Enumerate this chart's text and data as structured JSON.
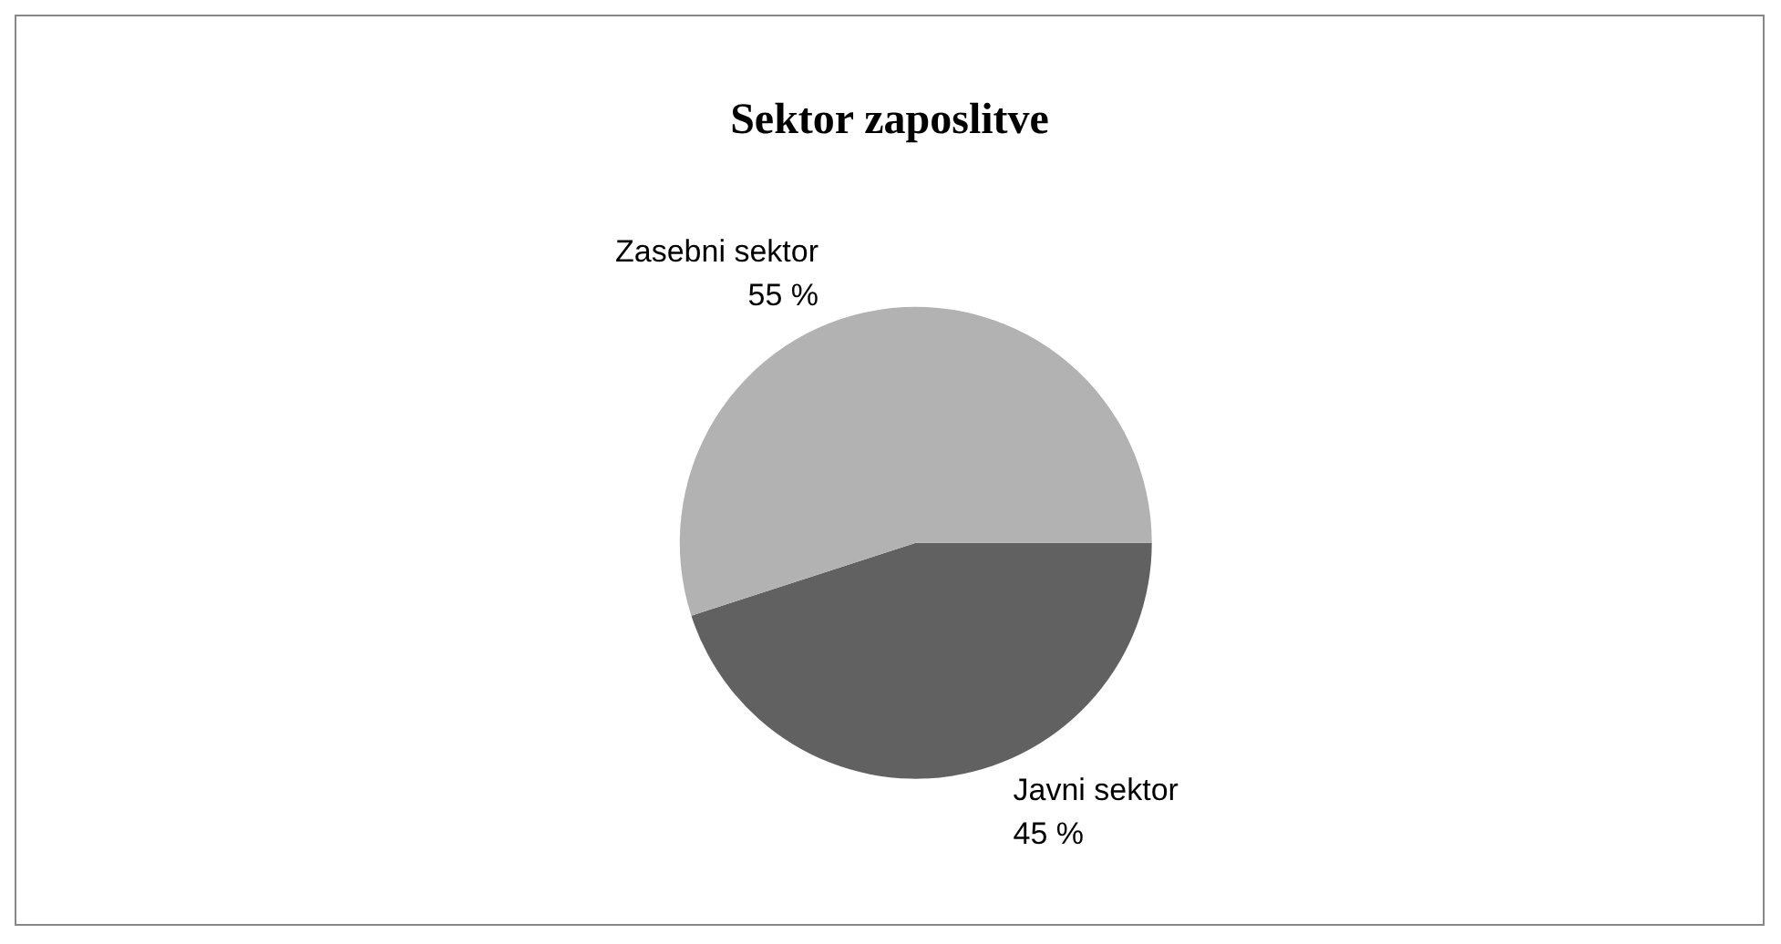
{
  "chart_data": {
    "type": "pie",
    "title": "Sektor zaposlitve",
    "categories": [
      "Javni sektor",
      "Zasebni sektor"
    ],
    "values": [
      45,
      55
    ],
    "value_labels": [
      "45 %",
      "55 %"
    ],
    "colors": [
      "#616161",
      "#b2b2b2"
    ],
    "legend": false
  }
}
